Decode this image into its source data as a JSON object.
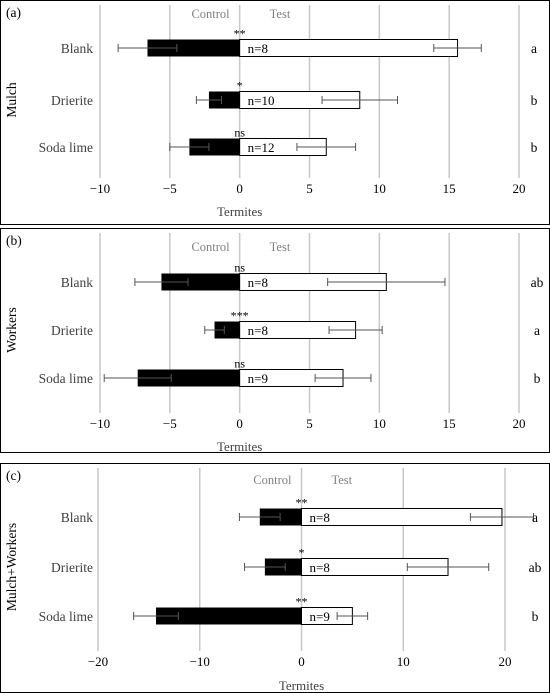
{
  "chart_data": [
    {
      "type": "bar",
      "orientation": "horizontal",
      "panel_label": "(a)",
      "ylabel": "Mulch",
      "xlabel": "Termites",
      "group_labels": [
        "Control",
        "Test"
      ],
      "categories": [
        "Blank",
        "Drierite",
        "Soda lime"
      ],
      "xlim": [
        -10,
        20
      ],
      "xticks": [
        -10,
        -5,
        0,
        5,
        10,
        15,
        20
      ],
      "grid": true,
      "series": [
        {
          "name": "Control",
          "color": "#000000",
          "values": [
            -6.6,
            -2.2,
            -3.6
          ],
          "errors": [
            2.1,
            0.9,
            1.4
          ]
        },
        {
          "name": "Test",
          "color": "#ffffff",
          "values": [
            15.6,
            8.6,
            6.2
          ],
          "errors": [
            1.7,
            2.7,
            2.1
          ]
        }
      ],
      "significance": [
        "**",
        "*",
        "ns"
      ],
      "n_labels": [
        "n=8",
        "n=10",
        "n=12"
      ],
      "letters": [
        "a",
        "b",
        "b"
      ]
    },
    {
      "type": "bar",
      "orientation": "horizontal",
      "panel_label": "(b)",
      "ylabel": "Workers",
      "xlabel": "Termites",
      "group_labels": [
        "Control",
        "Test"
      ],
      "categories": [
        "Blank",
        "Drierite",
        "Soda lime"
      ],
      "xlim": [
        -10,
        20
      ],
      "xticks": [
        -10,
        -5,
        0,
        5,
        10,
        15,
        20
      ],
      "grid": true,
      "series": [
        {
          "name": "Control",
          "color": "#000000",
          "values": [
            -5.6,
            -1.8,
            -7.3
          ],
          "errors": [
            1.9,
            0.7,
            2.4
          ]
        },
        {
          "name": "Test",
          "color": "#ffffff",
          "values": [
            10.5,
            8.3,
            7.4
          ],
          "errors": [
            4.2,
            1.9,
            2.0
          ]
        }
      ],
      "significance": [
        "ns",
        "***",
        "ns"
      ],
      "n_labels": [
        "n=8",
        "n=8",
        "n=9"
      ],
      "letters": [
        "ab",
        "a",
        "b"
      ]
    },
    {
      "type": "bar",
      "orientation": "horizontal",
      "panel_label": "(c)",
      "ylabel": "Mulch+Workers",
      "xlabel": "Termites",
      "group_labels": [
        "Control",
        "Test"
      ],
      "categories": [
        "Blank",
        "Drierite",
        "Soda lime"
      ],
      "xlim": [
        -20,
        20
      ],
      "xticks": [
        -20,
        -10,
        0,
        10,
        20
      ],
      "grid": true,
      "series": [
        {
          "name": "Control",
          "color": "#000000",
          "values": [
            -4.1,
            -3.6,
            -14.3
          ],
          "errors": [
            2.0,
            2.0,
            2.2
          ]
        },
        {
          "name": "Test",
          "color": "#ffffff",
          "values": [
            19.7,
            14.4,
            5.0
          ],
          "errors": [
            3.1,
            4.0,
            1.5
          ]
        }
      ],
      "significance": [
        "**",
        "*",
        "**"
      ],
      "n_labels": [
        "n=8",
        "n=8",
        "n=9"
      ],
      "letters": [
        "a",
        "ab",
        "b"
      ]
    }
  ]
}
